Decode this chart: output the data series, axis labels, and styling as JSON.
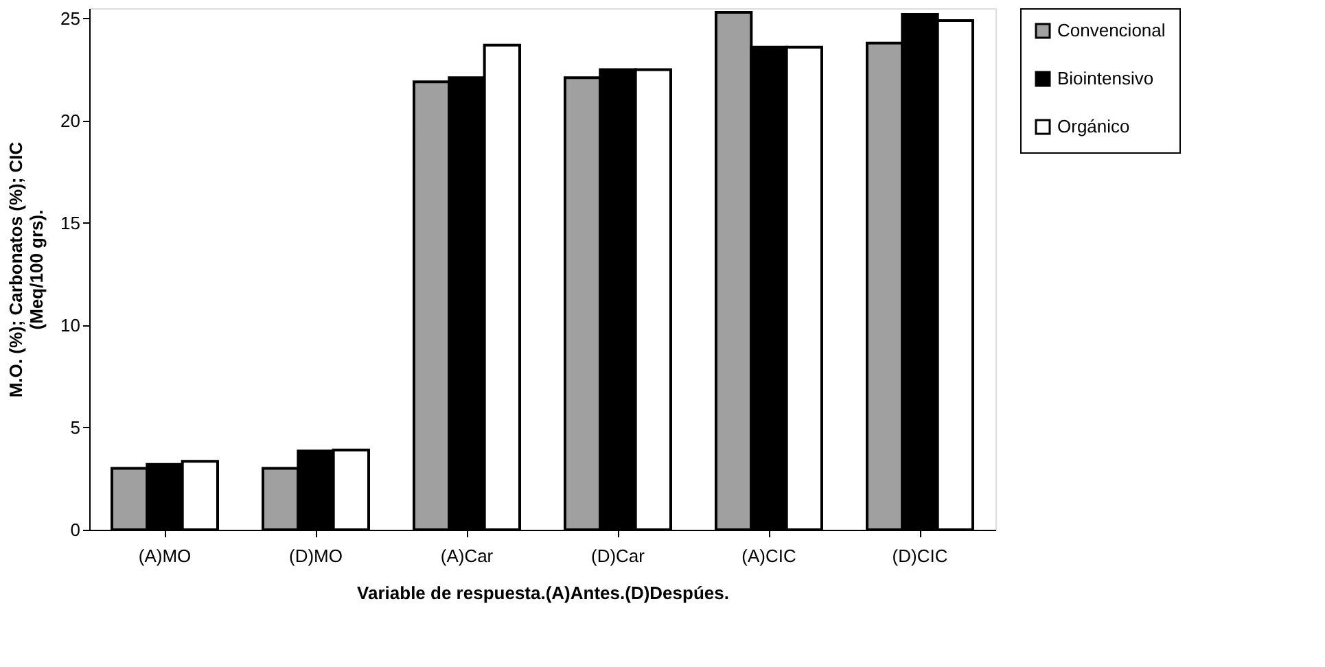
{
  "chart_data": {
    "type": "bar",
    "xlabel": "Variable de respuesta.(A)Antes.(D)Despúes.",
    "ylabel": "M.O. (%); Carbonatos (%); CIC\n(Meq/100 grs).",
    "categories": [
      "(A)MO",
      "(D)MO",
      "(A)Car",
      "(D)Car",
      "(A)CIC",
      "(D)CIC"
    ],
    "series": [
      {
        "name": "Convencional",
        "color": "#a0a0a0",
        "values": [
          3.0,
          3.0,
          21.9,
          22.1,
          25.3,
          23.8
        ]
      },
      {
        "name": "Biointensivo",
        "color": "#000000",
        "values": [
          3.2,
          3.85,
          22.1,
          22.5,
          23.6,
          25.2
        ]
      },
      {
        "name": "Orgánico",
        "color": "#ffffff",
        "values": [
          3.35,
          3.9,
          23.7,
          22.5,
          23.6,
          24.9
        ]
      }
    ],
    "ylim": [
      0,
      25.5
    ],
    "yticks": [
      0,
      5,
      10,
      15,
      20,
      25
    ],
    "grid": false,
    "legend": "right"
  }
}
